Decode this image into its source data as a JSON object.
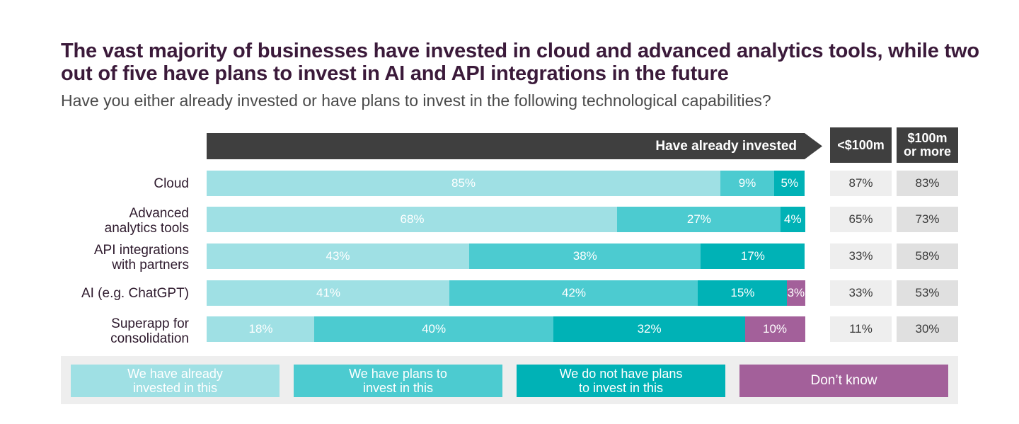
{
  "title": "The vast majority of businesses have invested in cloud and advanced analytics tools, while two out of five have plans to invest in AI and API integrations in the future",
  "subtitle": "Have you either already invested or have plans to invest in the following technological capabilities?",
  "colors": {
    "invested": "#9fe0e4",
    "plans": "#4ccbd0",
    "no_plans": "#00b2b6",
    "dont_know": "#a3609a",
    "header": "#3f3f3f",
    "cell_light": "#eeeeee",
    "cell_dark": "#e0e0e0"
  },
  "chart_data": {
    "type": "bar",
    "orientation": "horizontal",
    "stacked": true,
    "header_label": "Have already invested",
    "categories": [
      "Cloud",
      "Advanced analytics tools",
      "API integrations with partners",
      "AI (e.g. ChatGPT)",
      "Superapp for consolidation"
    ],
    "series": [
      {
        "name": "We have already invested in this",
        "color": "#9fe0e4",
        "values": [
          85,
          68,
          43,
          41,
          18
        ]
      },
      {
        "name": "We have plans to invest in this",
        "color": "#4ccbd0",
        "values": [
          9,
          27,
          38,
          42,
          40
        ]
      },
      {
        "name": "We do not have plans to invest in this",
        "color": "#00b2b6",
        "values": [
          5,
          4,
          17,
          15,
          32
        ]
      },
      {
        "name": "Don’t know",
        "color": "#a3609a",
        "values": [
          0,
          0,
          0,
          3,
          10
        ]
      }
    ],
    "labels": [
      [
        "85%",
        "68%",
        "43%",
        "41%",
        "18%"
      ],
      [
        "9%",
        "27%",
        "38%",
        "42%",
        "40%"
      ],
      [
        "5%",
        "4%",
        "17%",
        "15%",
        "32%"
      ],
      [
        "",
        "",
        "",
        "3%",
        "10%"
      ]
    ],
    "xlim": [
      0,
      100
    ],
    "side_columns": [
      {
        "name": "<$100m",
        "values": [
          "87%",
          "65%",
          "33%",
          "33%",
          "11%"
        ]
      },
      {
        "name": "$100m or more",
        "values": [
          "83%",
          "73%",
          "58%",
          "53%",
          "30%"
        ]
      }
    ]
  },
  "row_labels": [
    {
      "line1": "Cloud",
      "line2": ""
    },
    {
      "line1": "Advanced",
      "line2": "analytics tools"
    },
    {
      "line1": "API integrations",
      "line2": "with partners"
    },
    {
      "line1": "AI (e.g. ChatGPT)",
      "line2": ""
    },
    {
      "line1": "Superapp for",
      "line2": "consolidation"
    }
  ],
  "columns": {
    "col1": {
      "line1": "<$100m",
      "line2": ""
    },
    "col2": {
      "line1": "$100m",
      "line2": "or more"
    }
  },
  "legend": [
    {
      "line1": "We have already",
      "line2": "invested in this"
    },
    {
      "line1": "We have plans to",
      "line2": "invest in this"
    },
    {
      "line1": "We do not have plans",
      "line2": "to invest in this"
    },
    {
      "line1": "Don’t know",
      "line2": ""
    }
  ]
}
